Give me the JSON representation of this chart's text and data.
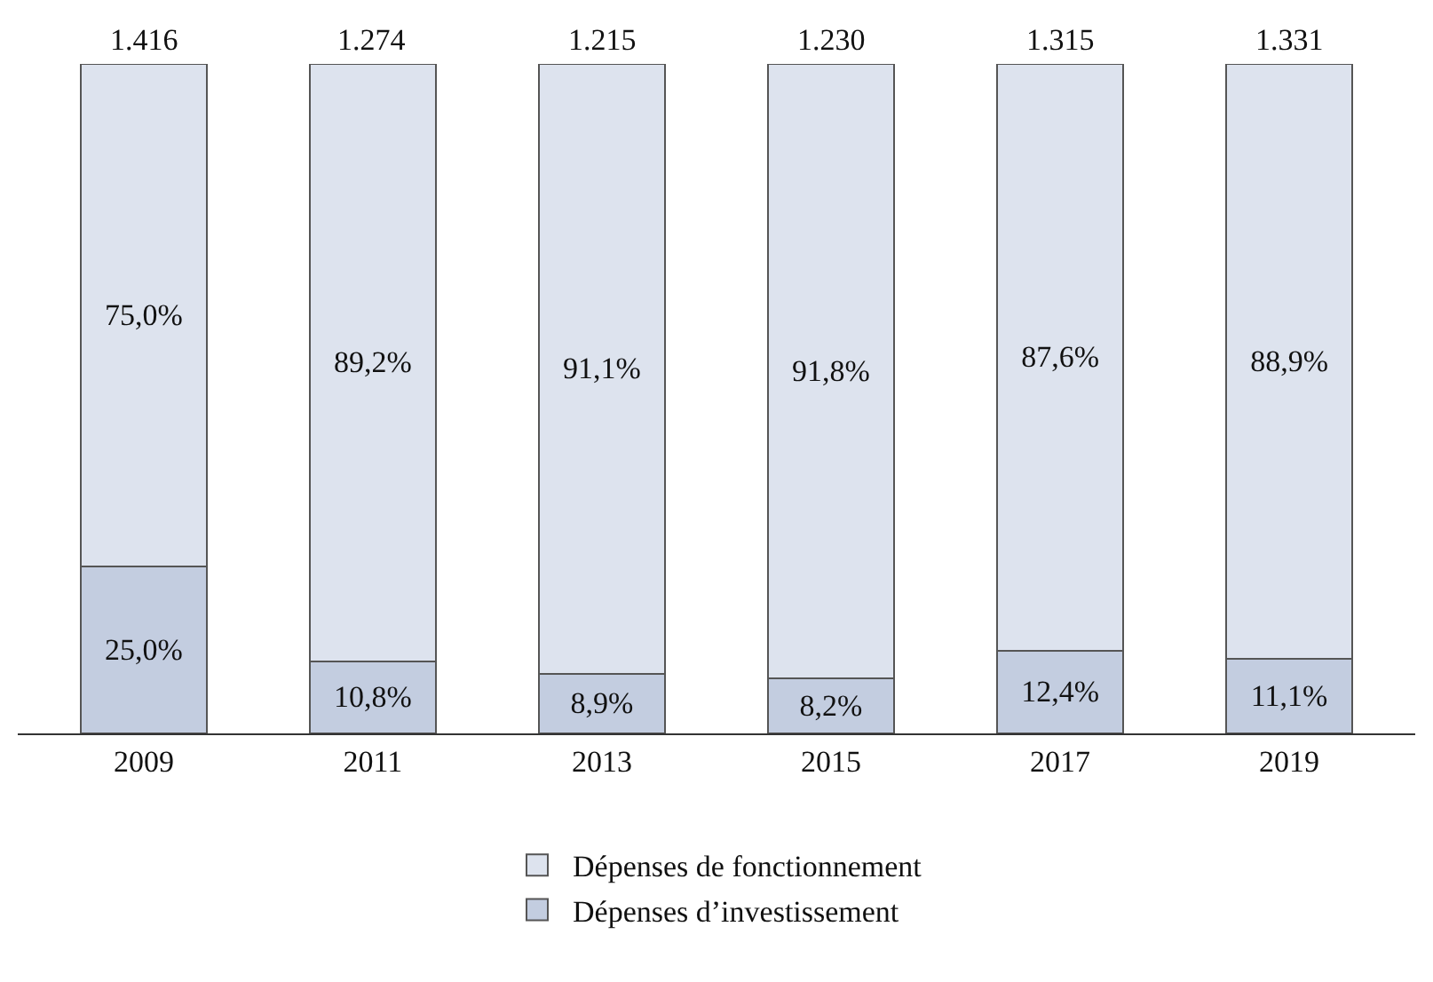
{
  "chart_data": {
    "type": "bar",
    "stacked": true,
    "data_labels": true,
    "legend": "bottom",
    "categories": [
      "2009",
      "2011",
      "2013",
      "2015",
      "2017",
      "2019"
    ],
    "series": [
      {
        "name": "Dépenses d’investissement",
        "color": "#c3cde0",
        "values": [
          25.0,
          10.8,
          8.9,
          8.2,
          12.4,
          11.1
        ],
        "value_labels": [
          "25,0%",
          "10,8%",
          "8,9%",
          "8,2%",
          "12,4%",
          "11,1%"
        ]
      },
      {
        "name": "Dépenses de fonctionnement",
        "color": "#dde3ee",
        "values": [
          75.0,
          89.2,
          91.1,
          91.8,
          87.6,
          88.9
        ],
        "value_labels": [
          "75,0%",
          "89,2%",
          "91,1%",
          "91,8%",
          "87,6%",
          "88,9%"
        ]
      }
    ],
    "annotations": [
      {
        "text": "1.416",
        "x": "2009",
        "y": 100
      },
      {
        "text": "1.274",
        "x": "2011",
        "y": 100
      },
      {
        "text": "1.215",
        "x": "2013",
        "y": 100
      },
      {
        "text": "1.230",
        "x": "2015",
        "y": 100
      },
      {
        "text": "1.315",
        "x": "2017",
        "y": 100
      },
      {
        "text": "1.331",
        "x": "2019",
        "y": 100
      }
    ]
  }
}
